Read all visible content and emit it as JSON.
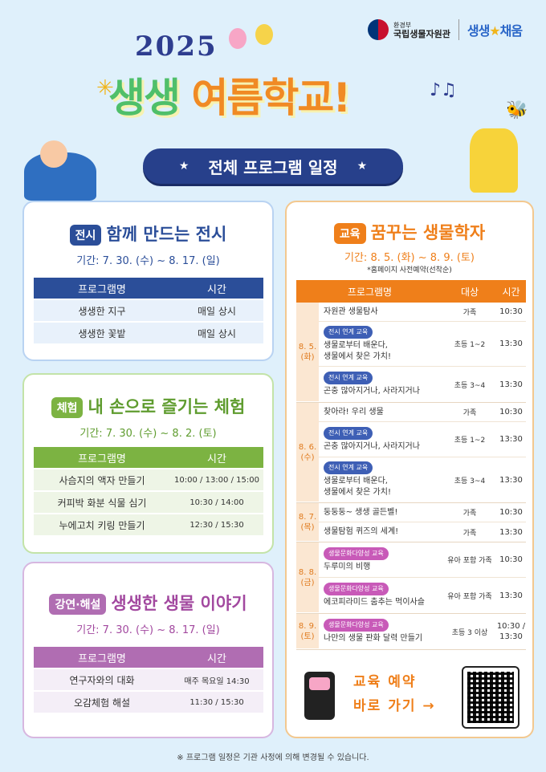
{
  "header": {
    "org_top": "환경부",
    "org_name": "국립생물자원관",
    "brand_a": "생생",
    "brand_b": "채움",
    "year": "2025",
    "title_a": "생생 ",
    "title_b": "여름학교!",
    "banner": "전체 프로그램 일정"
  },
  "exhibition": {
    "tag": "전시",
    "title": "함께 만드는 전시",
    "period": "기간: 7. 30. (수) ~ 8. 17. (일)",
    "headers": [
      "프로그램명",
      "시간"
    ],
    "rows": [
      [
        "생생한 지구",
        "매일 상시"
      ],
      [
        "생생한 꽃밭",
        "매일 상시"
      ]
    ]
  },
  "experience": {
    "tag": "체험",
    "title": "내 손으로 즐기는 체험",
    "period": "기간: 7. 30. (수) ~ 8. 2. (토)",
    "headers": [
      "프로그램명",
      "시간"
    ],
    "rows": [
      [
        "사슴지의 액자 만들기",
        "10:00 / 13:00 / 15:00"
      ],
      [
        "커피박 화분 식물 심기",
        "10:30 / 14:00"
      ],
      [
        "누에고치 키링 만들기",
        "12:30 / 15:30"
      ]
    ]
  },
  "lecture": {
    "tag": "강연·해설",
    "title": "생생한 생물 이야기",
    "period": "기간: 7. 30. (수) ~ 8. 17. (일)",
    "headers": [
      "프로그램명",
      "시간"
    ],
    "rows": [
      [
        "연구자와의 대화",
        "매주 목요일 14:30"
      ],
      [
        "오감체험 해설",
        "11:30 / 15:30"
      ]
    ]
  },
  "education": {
    "tag": "교육",
    "title": "꿈꾸는 생물학자",
    "period": "기간: 8. 5. (화) ~ 8. 9. (토)",
    "note": "*홈페이지 사전예약(선착순)",
    "headers": [
      "프로그램명",
      "대상",
      "시간"
    ],
    "days": [
      {
        "date": "8. 5.\n(화)",
        "items": [
          {
            "chip": "",
            "name": "자원관 생물탐사",
            "target": "가족",
            "time": "10:30"
          },
          {
            "chip": "전시 연계 교육",
            "name": "생물로부터 배운다,\n생물에서 찾은 가치!",
            "target": "초등 1~2",
            "time": "13:30"
          },
          {
            "chip": "전시 연계 교육",
            "name": "곤충 많아지거나, 사라지거나",
            "target": "초등 3~4",
            "time": "13:30"
          }
        ]
      },
      {
        "date": "8. 6.\n(수)",
        "items": [
          {
            "chip": "",
            "name": "찾아라! 우리 생물",
            "target": "가족",
            "time": "10:30"
          },
          {
            "chip": "전시 연계 교육",
            "name": "곤충 많아지거나, 사라지거나",
            "target": "초등 1~2",
            "time": "13:30"
          },
          {
            "chip": "전시 연계 교육",
            "name": "생물로부터 배운다,\n생물에서 찾은 가치!",
            "target": "초등 3~4",
            "time": "13:30"
          }
        ]
      },
      {
        "date": "8. 7.\n(목)",
        "items": [
          {
            "chip": "",
            "name": "둥둥둥~ 생생 골든벨!",
            "target": "가족",
            "time": "10:30"
          },
          {
            "chip": "",
            "name": "생물탐험 퀴즈의 세계!",
            "target": "가족",
            "time": "13:30"
          }
        ]
      },
      {
        "date": "8. 8.\n(금)",
        "items": [
          {
            "chip": "생물문화다양성 교육",
            "name": "두루미의 비행",
            "target": "유아 포함 가족",
            "time": "10:30"
          },
          {
            "chip": "생물문화다양성 교육",
            "name": "에코피라미드 춤추는 먹이사슬",
            "target": "유아 포함 가족",
            "time": "13:30"
          }
        ]
      },
      {
        "date": "8. 9.\n(토)",
        "items": [
          {
            "chip": "생물문화다양성 교육",
            "name": "나만의 생물 판화 달력 만들기",
            "target": "초등 3 이상",
            "time": "10:30 /\n13:30"
          }
        ]
      }
    ],
    "reserve_line1": "교육 예약",
    "reserve_line2": "바로 가기 →"
  },
  "footer": "※ 프로그램 일정은 기관 사정에 의해 변경될 수 있습니다.",
  "colors": {
    "navy": "#2b4e99",
    "green": "#7cb342",
    "purple": "#b06db2",
    "orange": "#ef7f1a"
  }
}
